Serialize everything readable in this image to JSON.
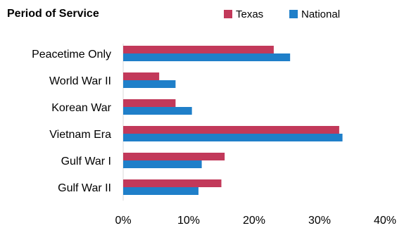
{
  "chart_data": {
    "type": "bar",
    "orientation": "horizontal",
    "title": "Period of Service",
    "categories": [
      "Peacetime Only",
      "World War II",
      "Korean War",
      "Vietnam Era",
      "Gulf War I",
      "Gulf War II"
    ],
    "series": [
      {
        "name": "Texas",
        "color": "#c2395a",
        "values": [
          23,
          5.5,
          8,
          33,
          15.5,
          15
        ]
      },
      {
        "name": "National",
        "color": "#1f7fc9",
        "values": [
          25.5,
          8,
          10.5,
          33.5,
          12,
          11.5
        ]
      }
    ],
    "xlim": [
      0,
      40
    ],
    "xticks": [
      "0%",
      "10%",
      "20%",
      "30%",
      "40%"
    ],
    "grid": false,
    "legend_position": "top-right"
  }
}
